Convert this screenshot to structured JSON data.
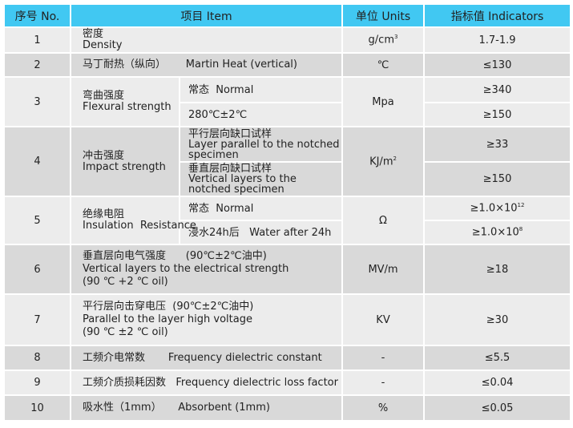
{
  "header": {
    "no": "序号 No.",
    "item": "项目  Item",
    "units": "单位 Units",
    "indicators": "指标值    Indicators"
  },
  "colors": {
    "header": "#41c8f2",
    "row_light": "#ececec",
    "row_dark": "#d9d9d9"
  },
  "rows": [
    {
      "no": "1",
      "item_cn": "密度",
      "item_en": "Density",
      "unit": "g/cm",
      "unit_sup": "3",
      "value": "1.7-1.9"
    },
    {
      "no": "2",
      "item": "马丁耐热（纵向）      Martin Heat (vertical)",
      "unit": "℃",
      "value": "≤130"
    },
    {
      "no": "3",
      "item_cn": "弯曲强度",
      "item_en": "Flexural strength",
      "unit": "Mpa",
      "sub": [
        {
          "label": "常态  Normal",
          "value": "≥340"
        },
        {
          "label": "280℃±2℃",
          "value": "≥150"
        }
      ]
    },
    {
      "no": "4",
      "item_cn": "冲击强度",
      "item_en": "Impact strength",
      "unit": "KJ/m",
      "unit_sup": "2",
      "sub": [
        {
          "label_cn": "平行层向缺口试样",
          "label_en": "Layer parallel to the notched specimen",
          "value": "≥33"
        },
        {
          "label_cn": "垂直层向缺口试样",
          "label_en": "Vertical layers to the notched specimen",
          "value": "≥150"
        }
      ]
    },
    {
      "no": "5",
      "item_cn": "绝缘电阻",
      "item_en": "Insulation  Resistance",
      "unit": "Ω",
      "sub": [
        {
          "label": "常态  Normal",
          "value": "≥1.0×10",
          "sup": "12"
        },
        {
          "label": "浸水24h后   Water after 24h",
          "value": "≥1.0×10",
          "sup": "8"
        }
      ]
    },
    {
      "no": "6",
      "line1": "垂直层向电气强度      (90℃±2℃油中)",
      "line2": "Vertical layers to the electrical strength",
      "line3": "(90 ℃ +2 ℃ oil)",
      "unit": "MV/m",
      "value": "≥18"
    },
    {
      "no": "7",
      "line1": "平行层向击穿电压  (90℃±2℃油中)",
      "line2": "Parallel to the layer high voltage",
      "line3": "(90 ℃ ±2 ℃ oil)",
      "unit": "KV",
      "value": "≥30"
    },
    {
      "no": "8",
      "item": "工频介电常数       Frequency dielectric constant",
      "unit": "-",
      "value": "≤5.5"
    },
    {
      "no": "9",
      "item": "工频介质损耗因数   Frequency dielectric loss factor",
      "unit": "-",
      "value": "≤0.04"
    },
    {
      "no": "10",
      "item": "吸水性（1mm）     Absorbent (1mm)",
      "unit": "%",
      "value": "≤0.05"
    }
  ]
}
